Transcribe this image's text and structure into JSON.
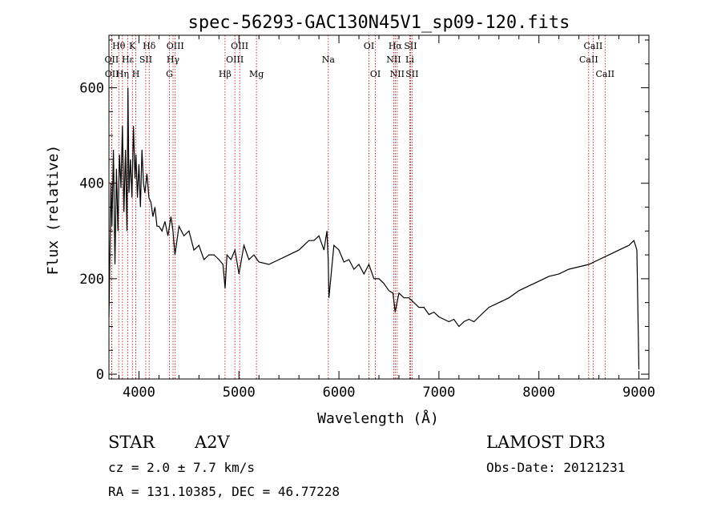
{
  "chart_data": {
    "type": "line",
    "title": "spec-56293-GAC130N45V1_sp09-120.fits",
    "xlabel": "Wavelength (Å)",
    "ylabel": "Flux (relative)",
    "xlim": [
      3700,
      9100
    ],
    "ylim": [
      -10,
      710
    ],
    "xticks": [
      4000,
      5000,
      6000,
      7000,
      8000,
      9000
    ],
    "yticks": [
      0,
      200,
      400,
      600
    ],
    "series": [
      {
        "name": "spectrum",
        "x": [
          3700,
          3710,
          3720,
          3730,
          3745,
          3760,
          3775,
          3790,
          3805,
          3820,
          3835,
          3850,
          3865,
          3880,
          3890,
          3900,
          3915,
          3930,
          3945,
          3960,
          3970,
          3985,
          4000,
          4015,
          4030,
          4045,
          4060,
          4080,
          4100,
          4120,
          4140,
          4160,
          4180,
          4200,
          4230,
          4260,
          4290,
          4320,
          4340,
          4360,
          4400,
          4450,
          4500,
          4550,
          4600,
          4650,
          4700,
          4750,
          4800,
          4840,
          4862,
          4880,
          4920,
          4960,
          5000,
          5050,
          5100,
          5150,
          5200,
          5300,
          5400,
          5500,
          5600,
          5700,
          5750,
          5800,
          5850,
          5880,
          5893,
          5900,
          5950,
          6000,
          6050,
          6100,
          6150,
          6200,
          6250,
          6300,
          6350,
          6400,
          6450,
          6500,
          6540,
          6563,
          6580,
          6600,
          6650,
          6700,
          6750,
          6800,
          6850,
          6900,
          6950,
          7000,
          7050,
          7100,
          7150,
          7200,
          7250,
          7300,
          7350,
          7400,
          7500,
          7600,
          7700,
          7800,
          7900,
          8000,
          8100,
          8200,
          8300,
          8400,
          8500,
          8600,
          8700,
          8800,
          8900,
          8950,
          8980,
          9000
        ],
        "y": [
          120,
          250,
          400,
          310,
          470,
          230,
          430,
          300,
          460,
          390,
          520,
          340,
          470,
          300,
          600,
          380,
          450,
          370,
          520,
          410,
          460,
          370,
          440,
          350,
          470,
          400,
          380,
          420,
          370,
          360,
          330,
          350,
          310,
          310,
          300,
          320,
          290,
          330,
          300,
          250,
          310,
          290,
          300,
          260,
          270,
          240,
          250,
          250,
          240,
          230,
          180,
          250,
          240,
          260,
          210,
          270,
          240,
          250,
          235,
          230,
          240,
          250,
          260,
          280,
          280,
          290,
          260,
          300,
          240,
          160,
          270,
          260,
          235,
          240,
          220,
          230,
          210,
          230,
          200,
          200,
          190,
          175,
          170,
          130,
          150,
          170,
          160,
          160,
          150,
          140,
          140,
          125,
          130,
          120,
          115,
          110,
          115,
          100,
          110,
          115,
          110,
          120,
          140,
          150,
          160,
          175,
          185,
          195,
          205,
          210,
          220,
          225,
          230,
          240,
          250,
          260,
          270,
          280,
          260,
          10
        ]
      }
    ],
    "spectral_lines": [
      {
        "label": "Hθ",
        "row": 1,
        "wl": 3798
      },
      {
        "label": "OII",
        "row": 2,
        "wl": 3727
      },
      {
        "label": "OII",
        "row": 3,
        "wl": 3729
      },
      {
        "label": "Hη",
        "row": 3,
        "wl": 3835
      },
      {
        "label": "Hε",
        "row": 2,
        "wl": 3889
      },
      {
        "label": "K",
        "row": 1,
        "wl": 3934
      },
      {
        "label": "H",
        "row": 3,
        "wl": 3969
      },
      {
        "label": "SII",
        "row": 2,
        "wl": 4068
      },
      {
        "label": "Hδ",
        "row": 1,
        "wl": 4102
      },
      {
        "label": "OIII",
        "row": 1,
        "wl": 4363
      },
      {
        "label": "Hγ",
        "row": 2,
        "wl": 4341
      },
      {
        "label": "G",
        "row": 3,
        "wl": 4305
      },
      {
        "label": "OIII",
        "row": 1,
        "wl": 5007
      },
      {
        "label": "OIII",
        "row": 2,
        "wl": 4959
      },
      {
        "label": "Hβ",
        "row": 3,
        "wl": 4861
      },
      {
        "label": "Mg",
        "row": 3,
        "wl": 5175
      },
      {
        "label": "Na",
        "row": 2,
        "wl": 5894
      },
      {
        "label": "OI",
        "row": 1,
        "wl": 6300
      },
      {
        "label": "OI",
        "row": 3,
        "wl": 6364
      },
      {
        "label": "Hα",
        "row": 1,
        "wl": 6563
      },
      {
        "label": "NII",
        "row": 2,
        "wl": 6548
      },
      {
        "label": "NII",
        "row": 3,
        "wl": 6583
      },
      {
        "label": "SII",
        "row": 1,
        "wl": 6716
      },
      {
        "label": "Li",
        "row": 2,
        "wl": 6708
      },
      {
        "label": "SII",
        "row": 3,
        "wl": 6731
      },
      {
        "label": "CaII",
        "row": 1,
        "wl": 8542
      },
      {
        "label": "CaII",
        "row": 2,
        "wl": 8498
      },
      {
        "label": "CaII",
        "row": 3,
        "wl": 8662
      }
    ]
  },
  "info": {
    "object_class": "STAR",
    "subclass": "A2V",
    "survey": "LAMOST DR3",
    "cz": "cz = 2.0 ± 7.7 km/s",
    "obs_date": "Obs-Date: 20121231",
    "coords": "RA = 131.10385, DEC =  46.77228"
  },
  "colors": {
    "line_marker": "#c00000",
    "spectrum": "#000000"
  }
}
